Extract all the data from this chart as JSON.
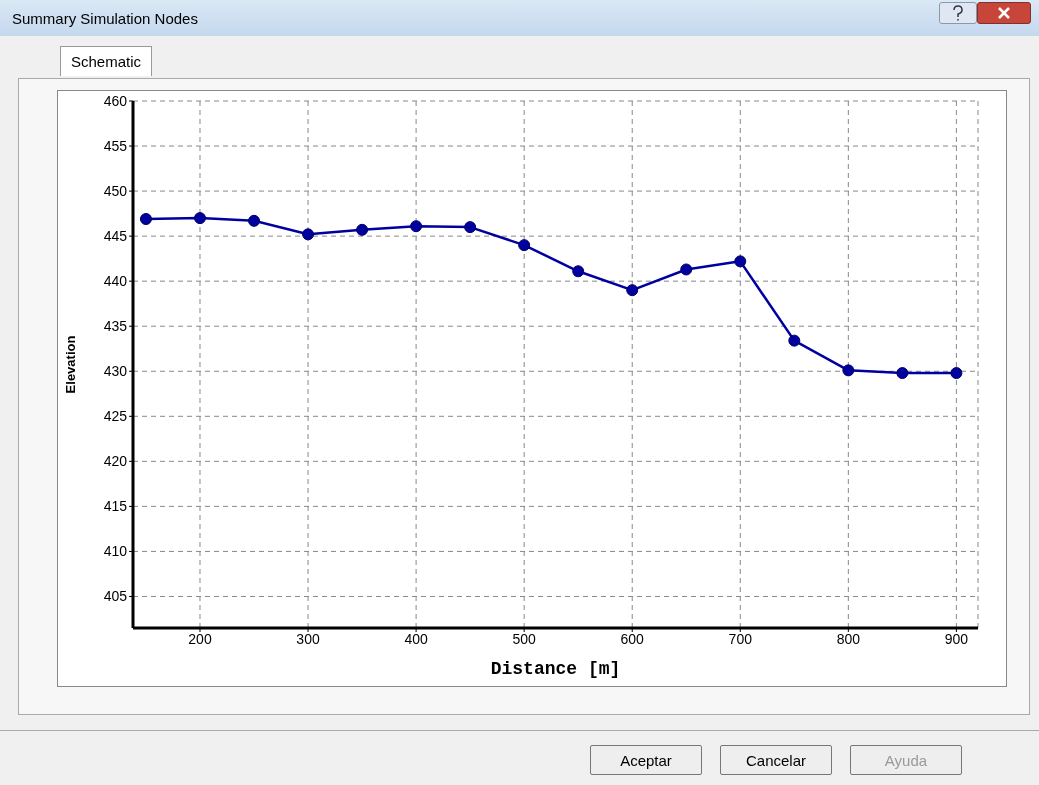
{
  "chart_data": {
    "type": "line",
    "title": "Summary Simulation Nodes",
    "subtitle": "Schematic",
    "xlabel": "Distance [m]",
    "ylabel": "Elevation",
    "x": [
      150,
      200,
      250,
      300,
      350,
      400,
      450,
      500,
      550,
      600,
      650,
      700,
      750,
      800,
      850,
      900
    ],
    "series": [
      {
        "color": "#0000a0",
        "values": [
          446.9,
          447.0,
          446.7,
          445.2,
          445.7,
          446.1,
          446.0,
          444.0,
          441.1,
          439.0,
          441.3,
          442.2,
          433.4,
          430.1,
          429.8,
          429.8
        ]
      }
    ],
    "xlim": [
      138,
      920
    ],
    "xticks": [
      200,
      300,
      400,
      500,
      600,
      700,
      800,
      900
    ],
    "ylim": [
      401.5,
      460
    ],
    "yticks": [
      405,
      410,
      415,
      420,
      425,
      430,
      435,
      440,
      445,
      450,
      455,
      460
    ],
    "grid": true,
    "marker": "circle",
    "line_style": "solid",
    "annotations": [
      "Aceptar",
      "Cancelar",
      "Ayuda"
    ]
  }
}
